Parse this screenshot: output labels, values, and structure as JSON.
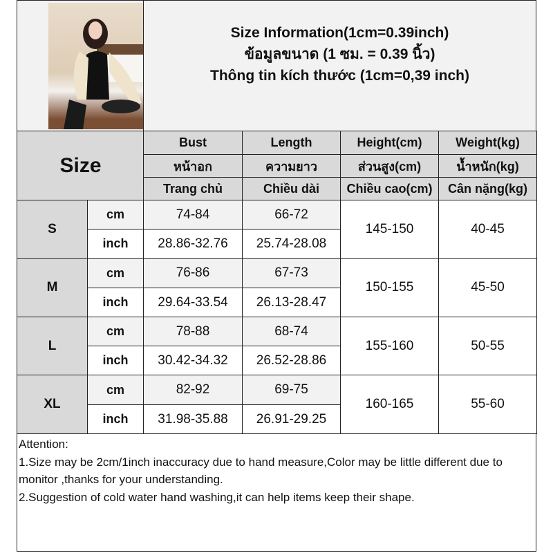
{
  "title_lines": [
    "Size Information(1cm=0.39inch)",
    "ข้อมูลขนาด (1 ซม. = 0.39 นิ้ว)",
    "Thông tin kích thước (1cm=0,39 inch)"
  ],
  "size_header": "Size",
  "columns": [
    {
      "en": "Bust",
      "th": "หน้าอก",
      "vi": "Trang chủ"
    },
    {
      "en": "Length",
      "th": "ความยาว",
      "vi": "Chiều dài"
    },
    {
      "en": "Height(cm)",
      "th": "ส่วนสูง(cm)",
      "vi": "Chiều cao(cm)"
    },
    {
      "en": "Weight(kg)",
      "th": "น้ำหนัก(kg)",
      "vi": "Cân nặng(kg)"
    }
  ],
  "units": {
    "cm": "cm",
    "inch": "inch"
  },
  "rows": [
    {
      "size": "S",
      "bust_cm": "74-84",
      "length_cm": "66-72",
      "bust_inch": "28.86-32.76",
      "length_inch": "25.74-28.08",
      "height": "145-150",
      "weight": "40-45"
    },
    {
      "size": "M",
      "bust_cm": "76-86",
      "length_cm": "67-73",
      "bust_inch": "29.64-33.54",
      "length_inch": "26.13-28.47",
      "height": "150-155",
      "weight": "45-50"
    },
    {
      "size": "L",
      "bust_cm": "78-88",
      "length_cm": "68-74",
      "bust_inch": "30.42-34.32",
      "length_inch": "26.52-28.86",
      "height": "155-160",
      "weight": "50-55"
    },
    {
      "size": "XL",
      "bust_cm": "82-92",
      "length_cm": "69-75",
      "bust_inch": "31.98-35.88",
      "length_inch": "26.91-29.25",
      "height": "160-165",
      "weight": "55-60"
    }
  ],
  "attention": {
    "heading": "Attention:",
    "lines": [
      "1.Size may be 2cm/1inch inaccuracy due to hand measure,Color may be little different due to monitor ,thanks for your understanding.",
      "2.Suggestion of cold water hand washing,it can help items keep their shape."
    ]
  }
}
